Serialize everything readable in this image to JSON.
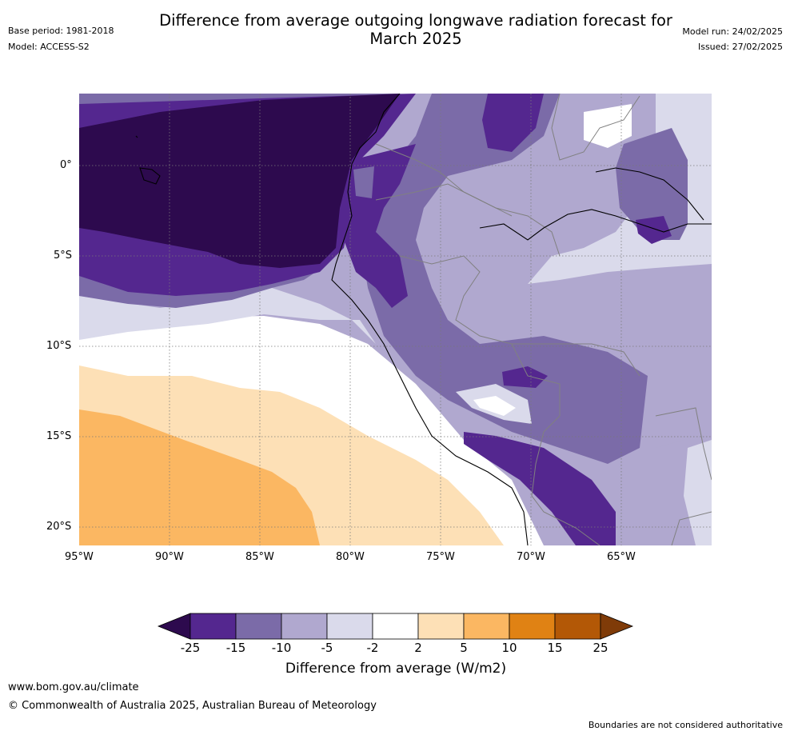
{
  "header": {
    "title_line1": "Difference from average outgoing longwave radiation forecast for",
    "title_line2": "March 2025",
    "base_period": "Base period: 1981-2018",
    "model": "Model: ACCESS-S2",
    "model_run": "Model run: 24/02/2025",
    "issued": "Issued: 27/02/2025"
  },
  "map": {
    "lat_labels": [
      "0°",
      "5°S",
      "10°S",
      "15°S",
      "20°S"
    ],
    "lon_labels": [
      "95°W",
      "90°W",
      "85°W",
      "80°W",
      "75°W",
      "70°W",
      "65°W"
    ]
  },
  "colorbar": {
    "ticks": [
      "-25",
      "-15",
      "-10",
      "-5",
      "-2",
      "2",
      "5",
      "10",
      "15",
      "25"
    ],
    "colors": [
      "#2d0a4e",
      "#54278f",
      "#7b6ba8",
      "#b0a8cf",
      "#dadaeb",
      "#ffffff",
      "#fde0b6",
      "#fbb762",
      "#e08214",
      "#b35806",
      "#7f3b08"
    ],
    "label": "Difference from average (W/m2)"
  },
  "footer": {
    "website": "www.bom.gov.au/climate",
    "copyright": "© Commonwealth of Australia 2025, Australian Bureau of Meteorology",
    "disclaimer": "Boundaries are not considered authoritative"
  }
}
